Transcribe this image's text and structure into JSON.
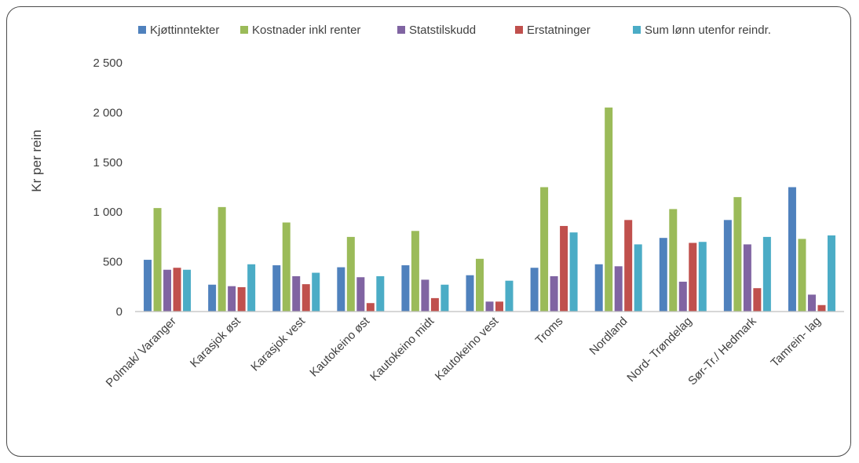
{
  "chart_data": {
    "type": "bar",
    "ylabel": "Kr per rein",
    "xlabel": "",
    "title": "",
    "ylim": [
      0,
      2500
    ],
    "yticks": [
      0,
      500,
      1000,
      1500,
      2000,
      2500
    ],
    "ytick_labels": [
      "0",
      "500",
      "1 000",
      "1 500",
      "2 000",
      "2 500"
    ],
    "grid": false,
    "legend_position": "top",
    "categories": [
      "Polmak/ Varanger",
      "Karasjok øst",
      "Karasjok vest",
      "Kautokeino øst",
      "Kautokeino midt",
      "Kautokeino vest",
      "Troms",
      "Nordland",
      "Nord- Trøndelag",
      "Sør-Tr./ Hedmark",
      "Tamrein- lag"
    ],
    "series": [
      {
        "name": "Kjøttinntekter",
        "color": "#4f81bd",
        "values": [
          520,
          270,
          465,
          445,
          465,
          365,
          440,
          475,
          740,
          920,
          1250
        ]
      },
      {
        "name": "Kostnader inkl renter",
        "color": "#9bbb59",
        "values": [
          1040,
          1050,
          895,
          750,
          810,
          530,
          1250,
          2050,
          1030,
          1150,
          730
        ]
      },
      {
        "name": "Statstilskudd",
        "color": "#8064a2",
        "values": [
          420,
          255,
          355,
          345,
          320,
          100,
          355,
          455,
          300,
          675,
          170
        ]
      },
      {
        "name": "Erstatninger",
        "color": "#c0504d",
        "values": [
          440,
          245,
          275,
          85,
          135,
          100,
          860,
          920,
          690,
          235,
          65
        ]
      },
      {
        "name": "Sum lønn utenfor reindr.",
        "color": "#4bacc6",
        "values": [
          420,
          475,
          390,
          355,
          270,
          310,
          795,
          675,
          700,
          750,
          765
        ]
      }
    ]
  }
}
